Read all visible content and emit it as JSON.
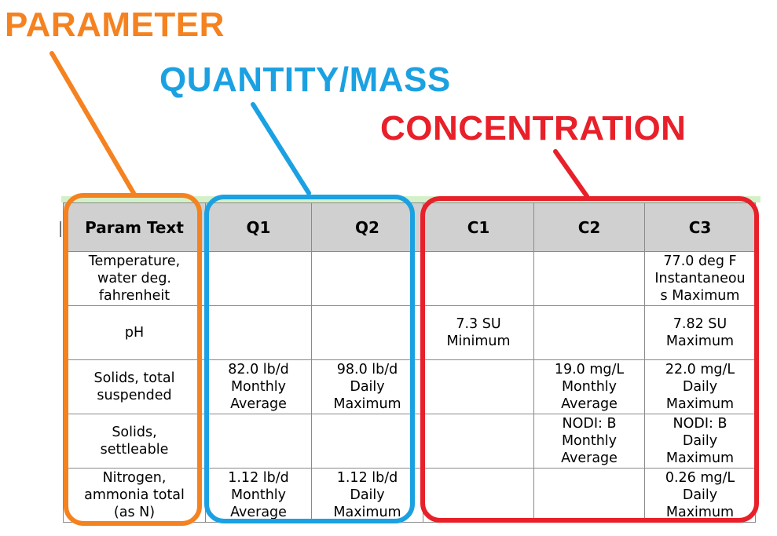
{
  "callouts": {
    "parameter": "PARAMETER",
    "quantity_mass": "QUANTITY/MASS",
    "concentration": "CONCENTRATION"
  },
  "colors": {
    "parameter": "#f58220",
    "quantity_mass": "#1ba1e2",
    "concentration": "#e8202a"
  },
  "table": {
    "headers": [
      "Param Text",
      "Q1",
      "Q2",
      "C1",
      "C2",
      "C3"
    ],
    "rows": [
      [
        "Temperature,\nwater deg.\nfahrenheit",
        "",
        "",
        "",
        "",
        "77.0 deg F\nInstantaneou\ns Maximum"
      ],
      [
        "pH",
        "",
        "",
        "7.3 SU\nMinimum",
        "",
        "7.82 SU\nMaximum"
      ],
      [
        "Solids, total\nsuspended",
        "82.0 lb/d\nMonthly\nAverage",
        "98.0 lb/d\nDaily\nMaximum",
        "",
        "19.0 mg/L\nMonthly\nAverage",
        "22.0 mg/L\nDaily\nMaximum"
      ],
      [
        "Solids,\nsettleable",
        "",
        "",
        "",
        "NODI: B\nMonthly\nAverage",
        "NODI: B\nDaily\nMaximum"
      ],
      [
        "Nitrogen,\nammonia total\n(as N)",
        "1.12 lb/d\nMonthly\nAverage",
        "1.12 lb/d\nDaily\nMaximum",
        "",
        "",
        "0.26 mg/L\nDaily\nMaximum"
      ]
    ]
  }
}
